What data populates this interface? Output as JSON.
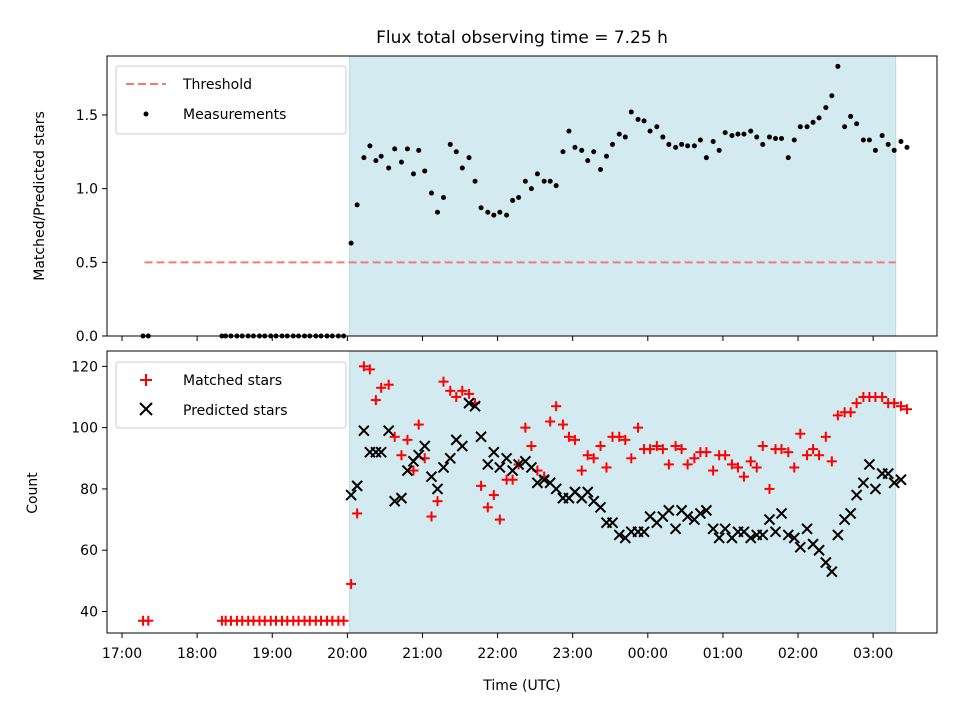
{
  "chart_data": {
    "type": "scatter",
    "title": "Flux total observing time = 7.25 h",
    "xlabel": "Time (UTC)",
    "x_tick_labels": [
      "17:00",
      "18:00",
      "19:00",
      "20:00",
      "21:00",
      "22:00",
      "23:00",
      "00:00",
      "01:00",
      "02:00",
      "03:00"
    ],
    "x_tick_hours": [
      0,
      1,
      2,
      3,
      4,
      5,
      6,
      7,
      8,
      9,
      10
    ],
    "xlim_hours": [
      -0.2,
      10.85
    ],
    "observing_window_hours": [
      3.03,
      10.3
    ],
    "colors": {
      "window": "#d3eaf0",
      "window_edge": "#b9dbe4",
      "threshold": "#f87878",
      "matched": "#ff0000",
      "predicted": "#000000",
      "measurement": "#000000"
    },
    "top": {
      "ylabel": "Matched/Predicted stars",
      "ylim": [
        0,
        1.9
      ],
      "yticks": [
        0.0,
        0.5,
        1.0,
        1.5
      ],
      "legend": {
        "placement": "upper-left",
        "threshold_label": "Threshold",
        "measurement_label": "Measurements"
      },
      "threshold": {
        "value": 0.5,
        "from_hour": 0.3,
        "to_hour": 10.3
      },
      "points": [
        [
          0.28,
          0
        ],
        [
          0.35,
          0
        ],
        [
          1.33,
          0
        ],
        [
          1.38,
          0
        ],
        [
          1.45,
          0
        ],
        [
          1.53,
          0
        ],
        [
          1.6,
          0
        ],
        [
          1.68,
          0
        ],
        [
          1.75,
          0
        ],
        [
          1.83,
          0
        ],
        [
          1.9,
          0
        ],
        [
          1.98,
          0
        ],
        [
          2.05,
          0
        ],
        [
          2.13,
          0
        ],
        [
          2.2,
          0
        ],
        [
          2.28,
          0
        ],
        [
          2.35,
          0
        ],
        [
          2.43,
          0
        ],
        [
          2.5,
          0
        ],
        [
          2.58,
          0
        ],
        [
          2.65,
          0
        ],
        [
          2.73,
          0
        ],
        [
          2.8,
          0
        ],
        [
          2.88,
          0
        ],
        [
          2.95,
          0
        ],
        [
          3.05,
          0.63
        ],
        [
          3.13,
          0.89
        ],
        [
          3.22,
          1.21
        ],
        [
          3.3,
          1.29
        ],
        [
          3.38,
          1.19
        ],
        [
          3.45,
          1.22
        ],
        [
          3.55,
          1.14
        ],
        [
          3.63,
          1.27
        ],
        [
          3.72,
          1.18
        ],
        [
          3.8,
          1.27
        ],
        [
          3.88,
          1.1
        ],
        [
          3.95,
          1.26
        ],
        [
          4.03,
          1.12
        ],
        [
          4.12,
          0.97
        ],
        [
          4.2,
          0.84
        ],
        [
          4.28,
          0.94
        ],
        [
          4.37,
          1.3
        ],
        [
          4.45,
          1.25
        ],
        [
          4.53,
          1.14
        ],
        [
          4.62,
          1.21
        ],
        [
          4.7,
          1.05
        ],
        [
          4.78,
          0.87
        ],
        [
          4.87,
          0.84
        ],
        [
          4.95,
          0.82
        ],
        [
          5.03,
          0.84
        ],
        [
          5.12,
          0.82
        ],
        [
          5.2,
          0.92
        ],
        [
          5.28,
          0.94
        ],
        [
          5.37,
          1.05
        ],
        [
          5.45,
          1.0
        ],
        [
          5.53,
          1.1
        ],
        [
          5.62,
          1.05
        ],
        [
          5.7,
          1.05
        ],
        [
          5.78,
          1.02
        ],
        [
          5.87,
          1.25
        ],
        [
          5.95,
          1.39
        ],
        [
          6.03,
          1.28
        ],
        [
          6.12,
          1.26
        ],
        [
          6.2,
          1.19
        ],
        [
          6.28,
          1.25
        ],
        [
          6.37,
          1.13
        ],
        [
          6.45,
          1.22
        ],
        [
          6.53,
          1.3
        ],
        [
          6.62,
          1.37
        ],
        [
          6.7,
          1.35
        ],
        [
          6.78,
          1.52
        ],
        [
          6.87,
          1.47
        ],
        [
          6.95,
          1.46
        ],
        [
          7.03,
          1.39
        ],
        [
          7.12,
          1.42
        ],
        [
          7.2,
          1.35
        ],
        [
          7.28,
          1.3
        ],
        [
          7.37,
          1.28
        ],
        [
          7.45,
          1.3
        ],
        [
          7.53,
          1.29
        ],
        [
          7.62,
          1.29
        ],
        [
          7.7,
          1.33
        ],
        [
          7.78,
          1.21
        ],
        [
          7.87,
          1.32
        ],
        [
          7.95,
          1.26
        ],
        [
          8.03,
          1.38
        ],
        [
          8.12,
          1.36
        ],
        [
          8.2,
          1.37
        ],
        [
          8.28,
          1.37
        ],
        [
          8.37,
          1.39
        ],
        [
          8.45,
          1.35
        ],
        [
          8.53,
          1.3
        ],
        [
          8.62,
          1.35
        ],
        [
          8.7,
          1.34
        ],
        [
          8.78,
          1.34
        ],
        [
          8.87,
          1.21
        ],
        [
          8.95,
          1.33
        ],
        [
          9.03,
          1.42
        ],
        [
          9.12,
          1.42
        ],
        [
          9.2,
          1.45
        ],
        [
          9.28,
          1.48
        ],
        [
          9.37,
          1.55
        ],
        [
          9.45,
          1.63
        ],
        [
          9.53,
          1.83
        ],
        [
          9.62,
          1.42
        ],
        [
          9.7,
          1.49
        ],
        [
          9.78,
          1.44
        ],
        [
          9.87,
          1.33
        ],
        [
          9.95,
          1.33
        ],
        [
          10.03,
          1.26
        ],
        [
          10.12,
          1.36
        ],
        [
          10.2,
          1.3
        ],
        [
          10.28,
          1.26
        ],
        [
          10.37,
          1.32
        ],
        [
          10.45,
          1.28
        ]
      ]
    },
    "bottom": {
      "ylabel": "Count",
      "ylim": [
        33,
        125
      ],
      "yticks": [
        40,
        60,
        80,
        100,
        120
      ],
      "legend": {
        "placement": "upper-left",
        "matched_label": "Matched stars",
        "predicted_label": "Predicted stars"
      },
      "matched": [
        [
          0.28,
          37
        ],
        [
          0.35,
          37
        ],
        [
          1.33,
          37
        ],
        [
          1.38,
          37
        ],
        [
          1.45,
          37
        ],
        [
          1.53,
          37
        ],
        [
          1.6,
          37
        ],
        [
          1.68,
          37
        ],
        [
          1.75,
          37
        ],
        [
          1.83,
          37
        ],
        [
          1.9,
          37
        ],
        [
          1.98,
          37
        ],
        [
          2.05,
          37
        ],
        [
          2.13,
          37
        ],
        [
          2.2,
          37
        ],
        [
          2.28,
          37
        ],
        [
          2.35,
          37
        ],
        [
          2.43,
          37
        ],
        [
          2.5,
          37
        ],
        [
          2.58,
          37
        ],
        [
          2.65,
          37
        ],
        [
          2.73,
          37
        ],
        [
          2.8,
          37
        ],
        [
          2.88,
          37
        ],
        [
          2.95,
          37
        ],
        [
          3.05,
          49
        ],
        [
          3.13,
          72
        ],
        [
          3.22,
          120
        ],
        [
          3.3,
          119
        ],
        [
          3.38,
          109
        ],
        [
          3.45,
          113
        ],
        [
          3.55,
          114
        ],
        [
          3.63,
          97
        ],
        [
          3.72,
          91
        ],
        [
          3.8,
          96
        ],
        [
          3.88,
          86
        ],
        [
          3.95,
          101
        ],
        [
          4.03,
          90
        ],
        [
          4.12,
          71
        ],
        [
          4.2,
          76
        ],
        [
          4.28,
          115
        ],
        [
          4.37,
          112
        ],
        [
          4.45,
          110
        ],
        [
          4.53,
          112
        ],
        [
          4.62,
          111
        ],
        [
          4.7,
          108
        ],
        [
          4.78,
          81
        ],
        [
          4.87,
          74
        ],
        [
          4.95,
          78
        ],
        [
          5.03,
          70
        ],
        [
          5.12,
          83
        ],
        [
          5.2,
          83
        ],
        [
          5.28,
          88
        ],
        [
          5.37,
          100
        ],
        [
          5.45,
          94
        ],
        [
          5.53,
          86
        ],
        [
          5.62,
          84
        ],
        [
          5.7,
          102
        ],
        [
          5.78,
          107
        ],
        [
          5.87,
          101
        ],
        [
          5.95,
          97
        ],
        [
          6.03,
          96
        ],
        [
          6.12,
          86
        ],
        [
          6.2,
          91
        ],
        [
          6.28,
          90
        ],
        [
          6.37,
          94
        ],
        [
          6.45,
          87
        ],
        [
          6.53,
          97
        ],
        [
          6.62,
          97
        ],
        [
          6.7,
          96
        ],
        [
          6.78,
          90
        ],
        [
          6.87,
          100
        ],
        [
          6.95,
          93
        ],
        [
          7.03,
          93
        ],
        [
          7.12,
          94
        ],
        [
          7.2,
          93
        ],
        [
          7.28,
          88
        ],
        [
          7.37,
          94
        ],
        [
          7.45,
          93
        ],
        [
          7.53,
          88
        ],
        [
          7.62,
          90
        ],
        [
          7.7,
          92
        ],
        [
          7.78,
          92
        ],
        [
          7.87,
          86
        ],
        [
          7.95,
          91
        ],
        [
          8.03,
          91
        ],
        [
          8.12,
          88
        ],
        [
          8.2,
          87
        ],
        [
          8.28,
          84
        ],
        [
          8.37,
          89
        ],
        [
          8.45,
          87
        ],
        [
          8.53,
          94
        ],
        [
          8.62,
          80
        ],
        [
          8.7,
          93
        ],
        [
          8.78,
          93
        ],
        [
          8.87,
          92
        ],
        [
          8.95,
          87
        ],
        [
          9.03,
          98
        ],
        [
          9.12,
          91
        ],
        [
          9.2,
          93
        ],
        [
          9.28,
          91
        ],
        [
          9.37,
          97
        ],
        [
          9.45,
          89
        ],
        [
          9.53,
          104
        ],
        [
          9.62,
          105
        ],
        [
          9.7,
          105
        ],
        [
          9.78,
          108
        ],
        [
          9.87,
          110
        ],
        [
          9.95,
          110
        ],
        [
          10.03,
          110
        ],
        [
          10.12,
          110
        ],
        [
          10.2,
          108
        ],
        [
          10.28,
          108
        ],
        [
          10.37,
          107
        ],
        [
          10.45,
          106
        ]
      ],
      "predicted": [
        [
          3.05,
          78
        ],
        [
          3.13,
          81
        ],
        [
          3.22,
          99
        ],
        [
          3.3,
          92
        ],
        [
          3.38,
          92
        ],
        [
          3.45,
          92
        ],
        [
          3.55,
          99
        ],
        [
          3.63,
          76
        ],
        [
          3.72,
          77
        ],
        [
          3.8,
          86
        ],
        [
          3.88,
          89
        ],
        [
          3.95,
          91
        ],
        [
          4.03,
          94
        ],
        [
          4.12,
          84
        ],
        [
          4.2,
          80
        ],
        [
          4.28,
          87
        ],
        [
          4.37,
          90
        ],
        [
          4.45,
          96
        ],
        [
          4.53,
          94
        ],
        [
          4.62,
          108
        ],
        [
          4.7,
          107
        ],
        [
          4.78,
          97
        ],
        [
          4.87,
          88
        ],
        [
          4.95,
          92
        ],
        [
          5.03,
          87
        ],
        [
          5.12,
          90
        ],
        [
          5.2,
          86
        ],
        [
          5.28,
          88
        ],
        [
          5.37,
          89
        ],
        [
          5.45,
          87
        ],
        [
          5.53,
          82
        ],
        [
          5.62,
          83
        ],
        [
          5.7,
          82
        ],
        [
          5.78,
          80
        ],
        [
          5.87,
          77
        ],
        [
          5.95,
          77
        ],
        [
          6.03,
          79
        ],
        [
          6.12,
          77
        ],
        [
          6.2,
          79
        ],
        [
          6.28,
          76
        ],
        [
          6.37,
          74
        ],
        [
          6.45,
          69
        ],
        [
          6.53,
          69
        ],
        [
          6.62,
          65
        ],
        [
          6.7,
          64
        ],
        [
          6.78,
          66
        ],
        [
          6.87,
          66
        ],
        [
          6.95,
          66
        ],
        [
          7.03,
          71
        ],
        [
          7.12,
          69
        ],
        [
          7.2,
          71
        ],
        [
          7.28,
          73
        ],
        [
          7.37,
          67
        ],
        [
          7.45,
          73
        ],
        [
          7.53,
          71
        ],
        [
          7.62,
          70
        ],
        [
          7.7,
          72
        ],
        [
          7.78,
          73
        ],
        [
          7.87,
          67
        ],
        [
          7.95,
          64
        ],
        [
          8.03,
          67
        ],
        [
          8.12,
          64
        ],
        [
          8.2,
          66
        ],
        [
          8.28,
          66
        ],
        [
          8.37,
          64
        ],
        [
          8.45,
          65
        ],
        [
          8.53,
          65
        ],
        [
          8.62,
          70
        ],
        [
          8.7,
          66
        ],
        [
          8.78,
          72
        ],
        [
          8.87,
          65
        ],
        [
          8.95,
          64
        ],
        [
          9.03,
          61
        ],
        [
          9.12,
          67
        ],
        [
          9.2,
          62
        ],
        [
          9.28,
          60
        ],
        [
          9.37,
          56
        ],
        [
          9.45,
          53
        ],
        [
          9.53,
          65
        ],
        [
          9.62,
          70
        ],
        [
          9.7,
          72
        ],
        [
          9.78,
          78
        ],
        [
          9.87,
          82
        ],
        [
          9.95,
          88
        ],
        [
          10.03,
          80
        ],
        [
          10.12,
          85
        ],
        [
          10.2,
          85
        ],
        [
          10.28,
          82
        ],
        [
          10.37,
          83
        ]
      ]
    }
  }
}
